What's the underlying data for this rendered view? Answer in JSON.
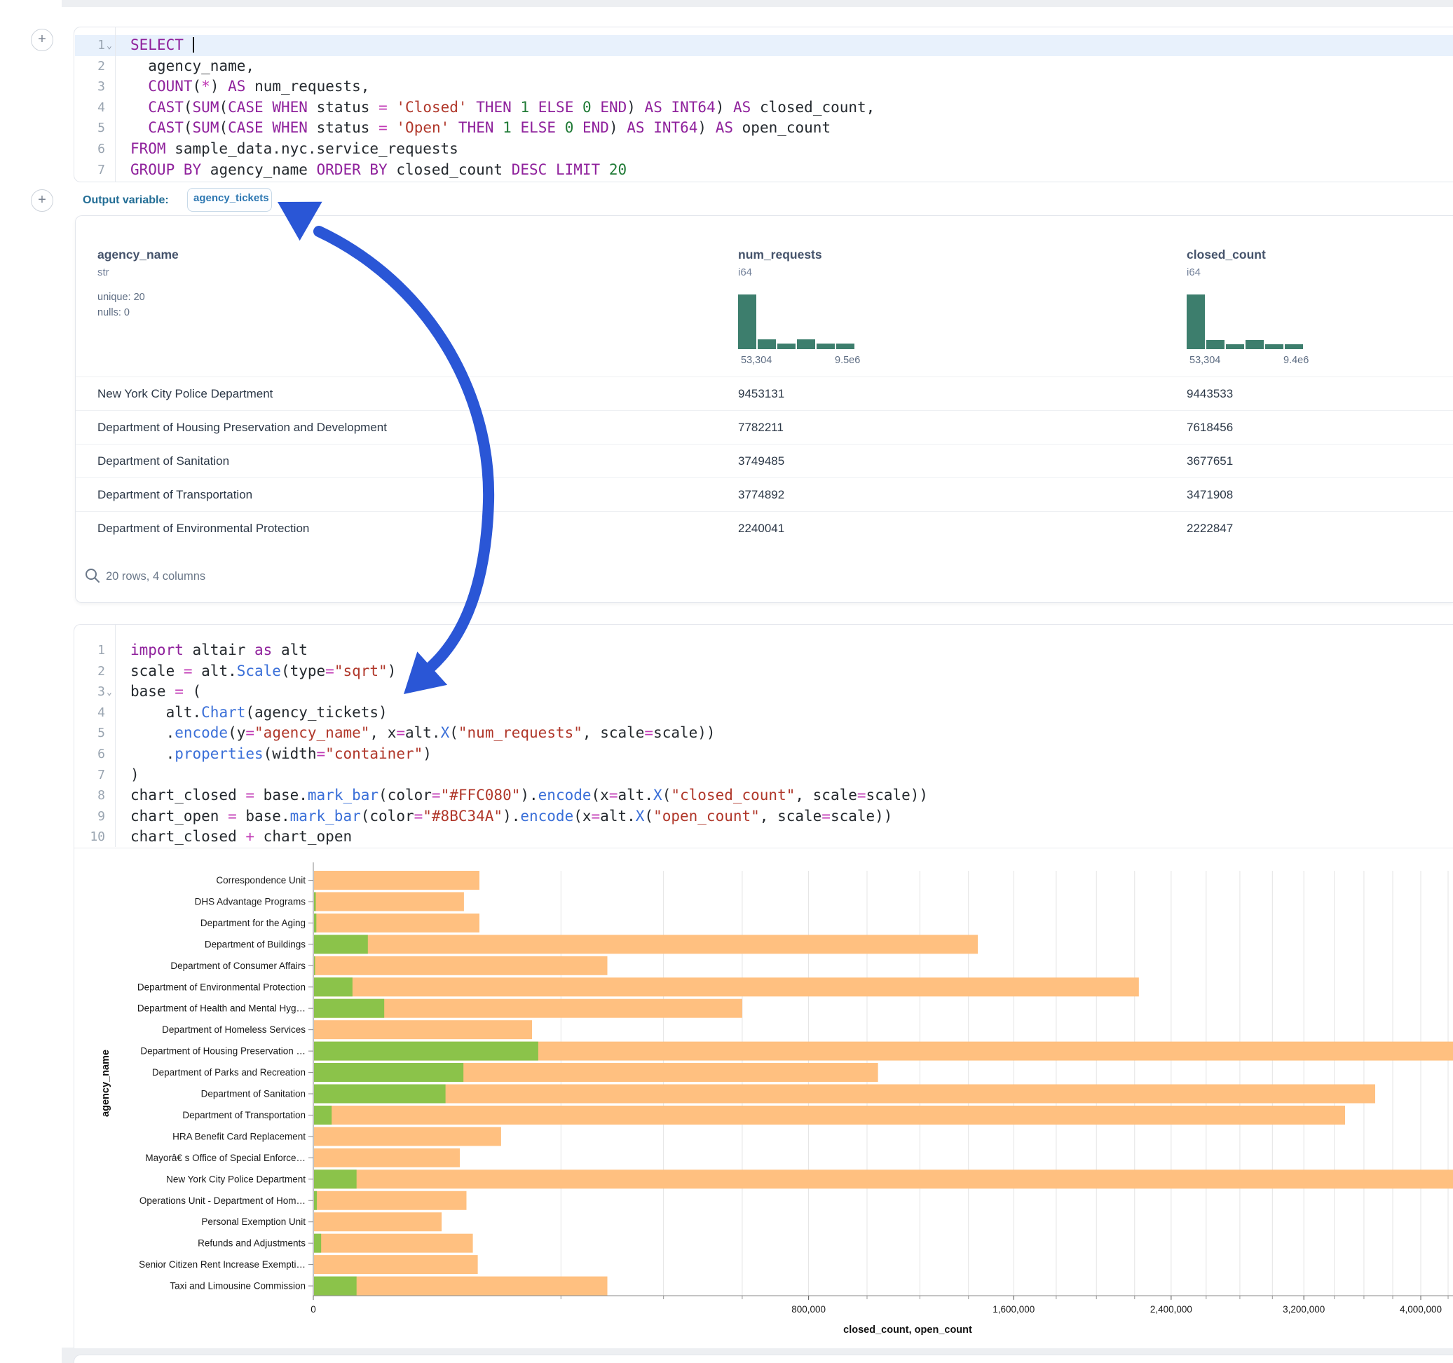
{
  "cells": {
    "sql": {
      "language": "sql",
      "gutter": [
        "1",
        "2",
        "3",
        "4",
        "5",
        "6",
        "7"
      ],
      "fold_lines": [
        1
      ],
      "active_line": 1,
      "lines": [
        [
          [
            "kw",
            "SELECT"
          ],
          [
            "pl",
            " "
          ],
          [
            "cursor",
            ""
          ]
        ],
        [
          [
            "pl",
            "  agency_name,"
          ]
        ],
        [
          [
            "pl",
            "  "
          ],
          [
            "kw",
            "COUNT"
          ],
          [
            "pl",
            "("
          ],
          [
            "op",
            "*"
          ],
          [
            "pl",
            ") "
          ],
          [
            "kw",
            "AS"
          ],
          [
            "pl",
            " num_requests,"
          ]
        ],
        [
          [
            "pl",
            "  "
          ],
          [
            "kw",
            "CAST"
          ],
          [
            "pl",
            "("
          ],
          [
            "kw",
            "SUM"
          ],
          [
            "pl",
            "("
          ],
          [
            "kw",
            "CASE"
          ],
          [
            "pl",
            " "
          ],
          [
            "kw",
            "WHEN"
          ],
          [
            "pl",
            " status "
          ],
          [
            "op",
            "="
          ],
          [
            "pl",
            " "
          ],
          [
            "str",
            "'Closed'"
          ],
          [
            "pl",
            " "
          ],
          [
            "kw",
            "THEN"
          ],
          [
            "pl",
            " "
          ],
          [
            "num",
            "1"
          ],
          [
            "pl",
            " "
          ],
          [
            "kw",
            "ELSE"
          ],
          [
            "pl",
            " "
          ],
          [
            "num",
            "0"
          ],
          [
            "pl",
            " "
          ],
          [
            "kw",
            "END"
          ],
          [
            "pl",
            ") "
          ],
          [
            "kw",
            "AS"
          ],
          [
            "pl",
            " "
          ],
          [
            "kw",
            "INT64"
          ],
          [
            "pl",
            ") "
          ],
          [
            "kw",
            "AS"
          ],
          [
            "pl",
            " closed_count,"
          ]
        ],
        [
          [
            "pl",
            "  "
          ],
          [
            "kw",
            "CAST"
          ],
          [
            "pl",
            "("
          ],
          [
            "kw",
            "SUM"
          ],
          [
            "pl",
            "("
          ],
          [
            "kw",
            "CASE"
          ],
          [
            "pl",
            " "
          ],
          [
            "kw",
            "WHEN"
          ],
          [
            "pl",
            " status "
          ],
          [
            "op",
            "="
          ],
          [
            "pl",
            " "
          ],
          [
            "str",
            "'Open'"
          ],
          [
            "pl",
            " "
          ],
          [
            "kw",
            "THEN"
          ],
          [
            "pl",
            " "
          ],
          [
            "num",
            "1"
          ],
          [
            "pl",
            " "
          ],
          [
            "kw",
            "ELSE"
          ],
          [
            "pl",
            " "
          ],
          [
            "num",
            "0"
          ],
          [
            "pl",
            " "
          ],
          [
            "kw",
            "END"
          ],
          [
            "pl",
            ") "
          ],
          [
            "kw",
            "AS"
          ],
          [
            "pl",
            " "
          ],
          [
            "kw",
            "INT64"
          ],
          [
            "pl",
            ") "
          ],
          [
            "kw",
            "AS"
          ],
          [
            "pl",
            " open_count"
          ]
        ],
        [
          [
            "kw",
            "FROM"
          ],
          [
            "pl",
            " sample_data.nyc.service_requests"
          ]
        ],
        [
          [
            "kw",
            "GROUP BY"
          ],
          [
            "pl",
            " agency_name "
          ],
          [
            "kw",
            "ORDER BY"
          ],
          [
            "pl",
            " closed_count "
          ],
          [
            "kw",
            "DESC"
          ],
          [
            "pl",
            " "
          ],
          [
            "kw",
            "LIMIT"
          ],
          [
            "pl",
            " "
          ],
          [
            "num",
            "20"
          ]
        ]
      ],
      "output_variable_label": "Output variable:",
      "output_variable_value": "agency_tickets"
    },
    "python": {
      "language": "python",
      "gutter": [
        "1",
        "2",
        "3",
        "4",
        "5",
        "6",
        "7",
        "8",
        "9",
        "10"
      ],
      "fold_lines": [
        3
      ],
      "lines": [
        [
          [
            "kw",
            "import"
          ],
          [
            "pl",
            " altair "
          ],
          [
            "kw",
            "as"
          ],
          [
            "pl",
            " alt"
          ]
        ],
        [
          [
            "pl",
            "scale "
          ],
          [
            "op",
            "="
          ],
          [
            "pl",
            " alt."
          ],
          [
            "fn",
            "Scale"
          ],
          [
            "pl",
            "(type"
          ],
          [
            "op",
            "="
          ],
          [
            "str",
            "\"sqrt\""
          ],
          [
            "pl",
            ")"
          ]
        ],
        [
          [
            "pl",
            "base "
          ],
          [
            "op",
            "="
          ],
          [
            "pl",
            " ("
          ]
        ],
        [
          [
            "pl",
            "    alt."
          ],
          [
            "fn",
            "Chart"
          ],
          [
            "pl",
            "(agency_tickets)"
          ]
        ],
        [
          [
            "pl",
            "    ."
          ],
          [
            "fn",
            "encode"
          ],
          [
            "pl",
            "(y"
          ],
          [
            "op",
            "="
          ],
          [
            "str",
            "\"agency_name\""
          ],
          [
            "pl",
            ", x"
          ],
          [
            "op",
            "="
          ],
          [
            "pl",
            "alt."
          ],
          [
            "fn",
            "X"
          ],
          [
            "pl",
            "("
          ],
          [
            "str",
            "\"num_requests\""
          ],
          [
            "pl",
            ", scale"
          ],
          [
            "op",
            "="
          ],
          [
            "pl",
            "scale))"
          ]
        ],
        [
          [
            "pl",
            "    ."
          ],
          [
            "fn",
            "properties"
          ],
          [
            "pl",
            "(width"
          ],
          [
            "op",
            "="
          ],
          [
            "str",
            "\"container\""
          ],
          [
            "pl",
            ")"
          ]
        ],
        [
          [
            "pl",
            ")"
          ]
        ],
        [
          [
            "pl",
            "chart_closed "
          ],
          [
            "op",
            "="
          ],
          [
            "pl",
            " base."
          ],
          [
            "fn",
            "mark_bar"
          ],
          [
            "pl",
            "(color"
          ],
          [
            "op",
            "="
          ],
          [
            "str",
            "\"#FFC080\""
          ],
          [
            "pl",
            ")."
          ],
          [
            "fn",
            "encode"
          ],
          [
            "pl",
            "(x"
          ],
          [
            "op",
            "="
          ],
          [
            "pl",
            "alt."
          ],
          [
            "fn",
            "X"
          ],
          [
            "pl",
            "("
          ],
          [
            "str",
            "\"closed_count\""
          ],
          [
            "pl",
            ", scale"
          ],
          [
            "op",
            "="
          ],
          [
            "pl",
            "scale))"
          ]
        ],
        [
          [
            "pl",
            "chart_open "
          ],
          [
            "op",
            "="
          ],
          [
            "pl",
            " base."
          ],
          [
            "fn",
            "mark_bar"
          ],
          [
            "pl",
            "(color"
          ],
          [
            "op",
            "="
          ],
          [
            "str",
            "\"#8BC34A\""
          ],
          [
            "pl",
            ")."
          ],
          [
            "fn",
            "encode"
          ],
          [
            "pl",
            "(x"
          ],
          [
            "op",
            "="
          ],
          [
            "pl",
            "alt."
          ],
          [
            "fn",
            "X"
          ],
          [
            "pl",
            "("
          ],
          [
            "str",
            "\"open_count\""
          ],
          [
            "pl",
            ", scale"
          ],
          [
            "op",
            "="
          ],
          [
            "pl",
            "scale))"
          ]
        ],
        [
          [
            "pl",
            "chart_closed "
          ],
          [
            "op",
            "+"
          ],
          [
            "pl",
            " chart_open"
          ]
        ]
      ]
    }
  },
  "table": {
    "columns": [
      {
        "name": "agency_name",
        "dtype": "str",
        "stats": [
          "unique: 20",
          "nulls: 0"
        ]
      },
      {
        "name": "num_requests",
        "dtype": "i64",
        "hist": {
          "bins": [
            1,
            0.18,
            0.1,
            0.18,
            0.1,
            0.1
          ],
          "min_label": "53,304",
          "max_label": "9.5e6"
        }
      },
      {
        "name": "closed_count",
        "dtype": "i64",
        "hist": {
          "bins": [
            1,
            0.17,
            0.09,
            0.17,
            0.09,
            0.09
          ],
          "min_label": "53,304",
          "max_label": "9.4e6"
        }
      }
    ],
    "rows": [
      {
        "agency_name": "New York City Police Department",
        "num_requests": "9453131",
        "closed_count": "9443533"
      },
      {
        "agency_name": "Department of Housing Preservation and Development",
        "num_requests": "7782211",
        "closed_count": "7618456"
      },
      {
        "agency_name": "Department of Sanitation",
        "num_requests": "3749485",
        "closed_count": "3677651"
      },
      {
        "agency_name": "Department of Transportation",
        "num_requests": "3774892",
        "closed_count": "3471908"
      },
      {
        "agency_name": "Department of Environmental Protection",
        "num_requests": "2240041",
        "closed_count": "2222847"
      }
    ],
    "footer": "20 rows, 4 columns"
  },
  "chart_data": {
    "type": "bar",
    "orientation": "horizontal",
    "scale_type": "sqrt",
    "title": "",
    "xlabel": "closed_count, open_count",
    "ylabel": "agency_name",
    "x_domain": [
      0,
      9443533
    ],
    "gridline_step": 200000,
    "legend": false,
    "categories": [
      "Correspondence Unit",
      "DHS Advantage Programs",
      "Department for the Aging",
      "Department of Buildings",
      "Department of Consumer Affairs",
      "Department of Environmental Protection",
      "Department of Health and Mental Hyg…",
      "Department of Homeless Services",
      "Department of Housing Preservation …",
      "Department of Parks and Recreation",
      "Department of Sanitation",
      "Department of Transportation",
      "HRA Benefit Card Replacement",
      "Mayorâ€ s Office of Special Enforce…",
      "New York City Police Department",
      "Operations Unit - Department of Hom…",
      "Personal Exemption Unit",
      "Refunds and Adjustments",
      "Senior Citizen Rent Increase Exempti…",
      "Taxi and Limousine Commission"
    ],
    "series": [
      {
        "name": "closed_count",
        "color": "#FFC080",
        "values": [
          90000,
          74000,
          90000,
          1440000,
          282000,
          2222847,
          600000,
          156000,
          7618456,
          1040000,
          3677651,
          3471908,
          115000,
          70000,
          9443533,
          76500,
          53700,
          83000,
          88200,
          282000
        ]
      },
      {
        "name": "open_count",
        "color": "#8BC34A",
        "values": [
          0,
          20,
          30,
          9700,
          10,
          5000,
          16400,
          0,
          165000,
          73500,
          57000,
          1100,
          0,
          0,
          6100,
          40,
          0,
          200,
          0,
          6100
        ]
      }
    ],
    "x_ticks": [
      {
        "v": 0,
        "label": "0"
      },
      {
        "v": 800000,
        "label": "800,000"
      },
      {
        "v": 1600000,
        "label": "1,600,000"
      },
      {
        "v": 2400000,
        "label": "2,400,000"
      },
      {
        "v": 3200000,
        "label": "3,200,000"
      },
      {
        "v": 4000000,
        "label": "4,000,000"
      }
    ]
  },
  "annotations": {
    "arrow": {
      "meaning": "hand-drawn arrow linking output variable agency_tickets to alt.Chart(agency_tickets) usage",
      "color": "#2A56D6"
    }
  },
  "colors": {
    "hist_bar": "#3d7e6d",
    "closed_bar": "#FFC080",
    "open_bar": "#8BC34A",
    "accent_blue": "#2A56D6",
    "active_line": "#e8f1fc"
  }
}
